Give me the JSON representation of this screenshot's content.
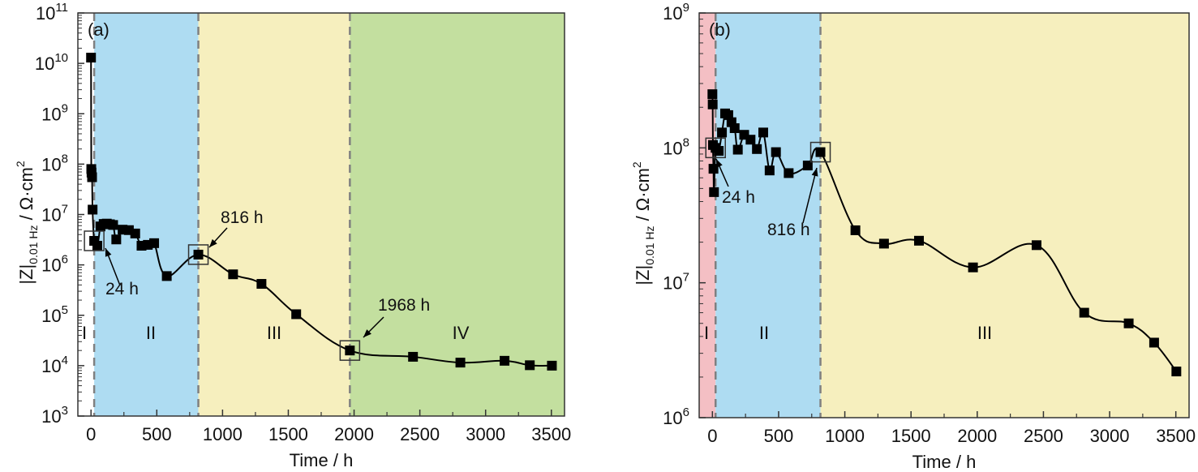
{
  "chart_data": [
    {
      "type": "line",
      "panel_label": "(a)",
      "xlabel": "Time / h",
      "ylabel_main": "|Z|",
      "ylabel_sub": "0.01 Hz",
      "ylabel_unit": " / Ω·cm",
      "ylabel_unit_sup": "2",
      "yscale": "log",
      "xlim": [
        -100,
        3600
      ],
      "ylim": [
        1000,
        100000000000
      ],
      "xticks": [
        0,
        500,
        1000,
        1500,
        2000,
        2500,
        3000,
        3500
      ],
      "xtick_labels": [
        "0",
        "500",
        "1000",
        "1500",
        "2000",
        "2500",
        "3000",
        "3500"
      ],
      "yticks_exp": [
        3,
        4,
        5,
        6,
        7,
        8,
        9,
        10,
        11
      ],
      "ytick_base": "10",
      "regions": [
        {
          "label": "I",
          "x0": -100,
          "x1": 24,
          "color": "#ffffff"
        },
        {
          "label": "II",
          "x0": 24,
          "x1": 816,
          "color": "#aedcf2"
        },
        {
          "label": "III",
          "x0": 816,
          "x1": 1968,
          "color": "#f6efbe"
        },
        {
          "label": "IV",
          "x0": 1968,
          "x1": 3600,
          "color": "#c3df9f"
        }
      ],
      "boundaries": [
        24,
        816,
        1968
      ],
      "series": [
        {
          "name": "|Z|0.01Hz",
          "x": [
            0,
            2,
            4,
            8,
            12,
            24,
            48,
            72,
            96,
            120,
            144,
            168,
            192,
            240,
            288,
            336,
            384,
            432,
            480,
            576,
            816,
            1080,
            1296,
            1560,
            1968,
            2448,
            2808,
            3144,
            3336,
            3504
          ],
          "y": [
            13000000000,
            80000000,
            68000000,
            55000000,
            12500000,
            3000000,
            2400000,
            5800000,
            6500000,
            6600000,
            6400000,
            6200000,
            3200000,
            5000000,
            4900000,
            4200000,
            2400000,
            2500000,
            2700000,
            600000,
            1600000,
            650000,
            420000,
            105000,
            20000,
            15000,
            11500,
            12500,
            10200,
            10000
          ]
        }
      ],
      "annotations": [
        {
          "text": "24 h",
          "x": 24,
          "y": 3000000
        },
        {
          "text": "816 h",
          "x": 816,
          "y": 1600000
        },
        {
          "text": "1968 h",
          "x": 1968,
          "y": 20000
        }
      ]
    },
    {
      "type": "line",
      "panel_label": "(b)",
      "xlabel": "Time / h",
      "ylabel_main": "|Z|",
      "ylabel_sub": "0.01 Hz",
      "ylabel_unit": " / Ω·cm",
      "ylabel_unit_sup": "2",
      "yscale": "log",
      "xlim": [
        -100,
        3600
      ],
      "ylim": [
        1000000,
        1000000000
      ],
      "xticks": [
        0,
        500,
        1000,
        1500,
        2000,
        2500,
        3000,
        3500
      ],
      "xtick_labels": [
        "0",
        "500",
        "1000",
        "1500",
        "2000",
        "2500",
        "3000",
        "3500"
      ],
      "yticks_exp": [
        6,
        7,
        8,
        9
      ],
      "ytick_base": "10",
      "regions": [
        {
          "label": "I",
          "x0": -100,
          "x1": 24,
          "color": "#f4bfc4"
        },
        {
          "label": "II",
          "x0": 24,
          "x1": 816,
          "color": "#aedcf2"
        },
        {
          "label": "III",
          "x0": 816,
          "x1": 3600,
          "color": "#f6efbe"
        }
      ],
      "boundaries": [
        24,
        816
      ],
      "series": [
        {
          "name": "|Z|0.01Hz",
          "x": [
            0,
            2,
            4,
            8,
            12,
            24,
            48,
            72,
            96,
            120,
            144,
            168,
            192,
            240,
            288,
            336,
            384,
            432,
            480,
            576,
            720,
            816,
            1080,
            1296,
            1560,
            1968,
            2448,
            2808,
            3144,
            3336,
            3504
          ],
          "y": [
            250000000,
            210000000,
            105000000,
            70000000,
            47000000,
            100000000,
            95000000,
            130000000,
            180000000,
            175000000,
            155000000,
            140000000,
            97000000,
            125000000,
            115000000,
            98000000,
            130000000,
            68000000,
            93000000,
            65000000,
            74000000,
            93000000,
            24500000,
            19500000,
            20500000,
            13000000,
            19000000,
            6000000,
            5000000,
            3600000,
            2200000
          ]
        }
      ],
      "annotations": [
        {
          "text": "24 h",
          "x": 24,
          "y": 100000000
        },
        {
          "text": "816 h",
          "x": 816,
          "y": 93000000
        }
      ]
    }
  ]
}
